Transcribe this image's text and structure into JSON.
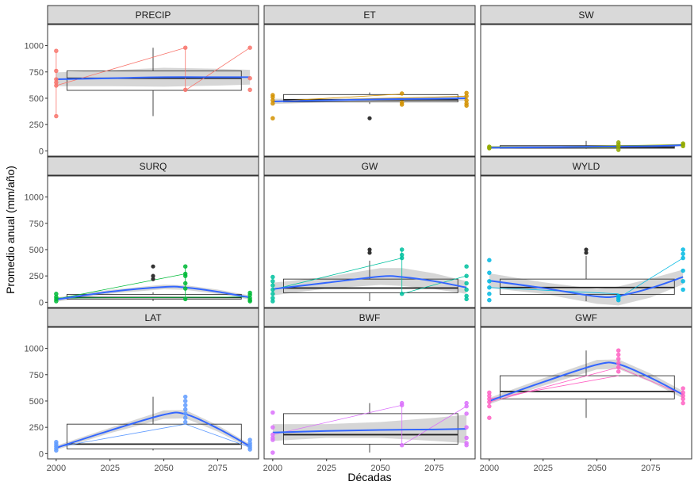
{
  "chart_data": {
    "type": "faceted-boxplot-scatter",
    "xlabel": "Décadas",
    "ylabel": "Promedio anual (mm/año)",
    "x_ticks": [
      2000,
      2025,
      2050,
      2075
    ],
    "y_ticks": [
      0,
      250,
      500,
      750,
      1000
    ],
    "xlim": [
      1996,
      2094
    ],
    "ylim": [
      -50,
      1200
    ],
    "colors": {
      "PRECIP": "#F8766D",
      "ET": "#D39200",
      "SW": "#93AA00",
      "SURQ": "#00BA38",
      "GW": "#00C19F",
      "WYLD": "#00B9E3",
      "LAT": "#619CFF",
      "BWF": "#DB72FB",
      "GWF": "#FF61C3",
      "smooth": "#3366FF",
      "ribbon": "#C8C8C8"
    },
    "panels": [
      {
        "label": "PRECIP",
        "box": {
          "x0": 2005,
          "x1": 2086,
          "q1": 575,
          "med": 690,
          "q3": 760,
          "wlo": 330,
          "whi": 980,
          "wx": 2045
        },
        "points": [
          {
            "x": 2000,
            "values": [
              950,
              760,
              680,
              650,
              620,
              330
            ]
          },
          {
            "x": 2060,
            "values": [
              980,
              580
            ]
          },
          {
            "x": 2090,
            "values": [
              980,
              690,
              580
            ]
          }
        ],
        "lines": [
          [
            [
              2000,
              620
            ],
            [
              2060,
              980
            ]
          ],
          [
            [
              2060,
              980
            ],
            [
              2060,
              575
            ]
          ],
          [
            [
              2060,
              575
            ],
            [
              2090,
              980
            ]
          ],
          [
            [
              2000,
              940
            ],
            [
              2000,
              330
            ]
          ]
        ],
        "smooth": [
          [
            2000,
            680
          ],
          [
            2025,
            690
          ],
          [
            2050,
            700
          ],
          [
            2075,
            700
          ],
          [
            2090,
            700
          ]
        ],
        "se": [
          65,
          75,
          90,
          80,
          70
        ],
        "outliers": []
      },
      {
        "label": "ET",
        "box": {
          "x0": 2005,
          "x1": 2086,
          "q1": 465,
          "med": 485,
          "q3": 535,
          "wlo": 445,
          "whi": 555,
          "wx": 2045
        },
        "points": [
          {
            "x": 2000,
            "values": [
              530,
              510,
              480,
              450,
              310
            ]
          },
          {
            "x": 2060,
            "values": [
              545,
              460,
              440
            ]
          },
          {
            "x": 2090,
            "values": [
              550,
              520,
              480,
              450,
              430
            ]
          }
        ],
        "lines": [
          [
            [
              2000,
              470
            ],
            [
              2090,
              520
            ]
          ],
          [
            [
              2000,
              470
            ],
            [
              2060,
              540
            ]
          ]
        ],
        "smooth": [
          [
            2000,
            470
          ],
          [
            2025,
            480
          ],
          [
            2050,
            490
          ],
          [
            2075,
            495
          ],
          [
            2090,
            500
          ]
        ],
        "se": [
          25,
          18,
          15,
          18,
          25
        ],
        "outliers": [
          {
            "x": 2045,
            "y": 310
          }
        ]
      },
      {
        "label": "SW",
        "box": {
          "x0": 2005,
          "x1": 2086,
          "q1": 25,
          "med": 35,
          "q3": 50,
          "wlo": 20,
          "whi": 95,
          "wx": 2045
        },
        "points": [
          {
            "x": 2000,
            "values": [
              40,
              30,
              25
            ]
          },
          {
            "x": 2060,
            "values": [
              80,
              60,
              40,
              10
            ]
          },
          {
            "x": 2090,
            "values": [
              70,
              60,
              45
            ]
          }
        ],
        "lines": [
          [
            [
              2000,
              30
            ],
            [
              2090,
              60
            ]
          ],
          [
            [
              2000,
              40
            ],
            [
              2060,
              30
            ]
          ]
        ],
        "smooth": [
          [
            2000,
            30
          ],
          [
            2025,
            35
          ],
          [
            2050,
            40
          ],
          [
            2075,
            45
          ],
          [
            2090,
            55
          ]
        ],
        "se": [
          12,
          8,
          8,
          10,
          12
        ],
        "outliers": []
      },
      {
        "label": "SURQ",
        "box": {
          "x0": 2005,
          "x1": 2086,
          "q1": 30,
          "med": 45,
          "q3": 75,
          "wlo": 10,
          "whi": 95,
          "wx": 2045
        },
        "points": [
          {
            "x": 2000,
            "values": [
              80,
              50,
              30,
              10
            ]
          },
          {
            "x": 2060,
            "values": [
              340,
              270,
              250,
              180,
              130,
              30
            ]
          },
          {
            "x": 2090,
            "values": [
              90,
              70,
              40,
              20,
              10
            ]
          }
        ],
        "lines": [
          [
            [
              2000,
              30
            ],
            [
              2060,
              270
            ]
          ],
          [
            [
              2060,
              340
            ],
            [
              2060,
              30
            ]
          ],
          [
            [
              2000,
              40
            ],
            [
              2090,
              50
            ]
          ]
        ],
        "smooth": [
          [
            2000,
            25
          ],
          [
            2025,
            100
          ],
          [
            2050,
            145
          ],
          [
            2060,
            140
          ],
          [
            2075,
            100
          ],
          [
            2090,
            45
          ]
        ],
        "se": [
          20,
          18,
          22,
          22,
          20,
          20
        ],
        "outliers": [
          {
            "x": 2045,
            "y": 340
          },
          {
            "x": 2045,
            "y": 250
          },
          {
            "x": 2045,
            "y": 220
          }
        ]
      },
      {
        "label": "GW",
        "box": {
          "x0": 2005,
          "x1": 2086,
          "q1": 90,
          "med": 135,
          "q3": 220,
          "wlo": 10,
          "whi": 395,
          "wx": 2045
        },
        "points": [
          {
            "x": 2000,
            "values": [
              240,
              200,
              160,
              120,
              80,
              40,
              10
            ]
          },
          {
            "x": 2060,
            "values": [
              500,
              450,
              420,
              80
            ]
          },
          {
            "x": 2090,
            "values": [
              340,
              250,
              180,
              120,
              60,
              30
            ]
          }
        ],
        "lines": [
          [
            [
              2000,
              120
            ],
            [
              2060,
              420
            ]
          ],
          [
            [
              2060,
              500
            ],
            [
              2060,
              80
            ]
          ],
          [
            [
              2060,
              80
            ],
            [
              2090,
              250
            ]
          ]
        ],
        "smooth": [
          [
            2000,
            125
          ],
          [
            2025,
            185
          ],
          [
            2050,
            245
          ],
          [
            2060,
            240
          ],
          [
            2075,
            200
          ],
          [
            2090,
            140
          ]
        ],
        "se": [
          60,
          55,
          80,
          85,
          75,
          60
        ],
        "outliers": [
          {
            "x": 2045,
            "y": 500
          },
          {
            "x": 2045,
            "y": 470
          }
        ]
      },
      {
        "label": "WYLD",
        "box": {
          "x0": 2005,
          "x1": 2086,
          "q1": 75,
          "med": 140,
          "q3": 220,
          "wlo": 10,
          "whi": 440,
          "wx": 2045
        },
        "points": [
          {
            "x": 2000,
            "values": [
              400,
              280,
              200,
              140,
              80,
              20
            ]
          },
          {
            "x": 2060,
            "values": [
              60,
              40,
              20
            ]
          },
          {
            "x": 2090,
            "values": [
              500,
              460,
              420,
              300,
              200,
              120
            ]
          }
        ],
        "lines": [
          [
            [
              2000,
              140
            ],
            [
              2060,
              80
            ]
          ],
          [
            [
              2060,
              40
            ],
            [
              2090,
              420
            ]
          ]
        ],
        "smooth": [
          [
            2000,
            205
          ],
          [
            2025,
            135
          ],
          [
            2050,
            55
          ],
          [
            2060,
            60
          ],
          [
            2075,
            135
          ],
          [
            2090,
            240
          ]
        ],
        "se": [
          70,
          55,
          70,
          90,
          90,
          70
        ],
        "outliers": [
          {
            "x": 2045,
            "y": 500
          },
          {
            "x": 2045,
            "y": 470
          }
        ]
      },
      {
        "label": "LAT",
        "box": {
          "x0": 2005,
          "x1": 2086,
          "q1": 45,
          "med": 90,
          "q3": 280,
          "wlo": 30,
          "whi": 540,
          "wx": 2045
        },
        "points": [
          {
            "x": 2000,
            "values": [
              110,
              90,
              70,
              50,
              30
            ]
          },
          {
            "x": 2060,
            "values": [
              540,
              500,
              460,
              420,
              380,
              340,
              300
            ]
          },
          {
            "x": 2090,
            "values": [
              130,
              100,
              80,
              60,
              40
            ]
          }
        ],
        "lines": [
          [
            [
              2000,
              60
            ],
            [
              2060,
              280
            ]
          ],
          [
            [
              2060,
              280
            ],
            [
              2090,
              60
            ]
          ]
        ],
        "smooth": [
          [
            2000,
            55
          ],
          [
            2025,
            220
          ],
          [
            2050,
            370
          ],
          [
            2060,
            375
          ],
          [
            2075,
            240
          ],
          [
            2090,
            70
          ]
        ],
        "se": [
          20,
          25,
          40,
          40,
          30,
          20
        ],
        "outliers": []
      },
      {
        "label": "BWF",
        "box": {
          "x0": 2005,
          "x1": 2086,
          "q1": 90,
          "med": 180,
          "q3": 380,
          "wlo": 10,
          "whi": 480,
          "wx": 2045
        },
        "points": [
          {
            "x": 2000,
            "values": [
              390,
              250,
              180,
              150,
              130,
              10
            ]
          },
          {
            "x": 2060,
            "values": [
              480,
              460,
              80
            ]
          },
          {
            "x": 2090,
            "values": [
              480,
              450,
              380,
              250,
              150,
              100,
              80
            ]
          }
        ],
        "lines": [
          [
            [
              2000,
              180
            ],
            [
              2060,
              460
            ]
          ],
          [
            [
              2060,
              480
            ],
            [
              2060,
              80
            ]
          ],
          [
            [
              2060,
              80
            ],
            [
              2090,
              450
            ]
          ]
        ],
        "smooth": [
          [
            2000,
            200
          ],
          [
            2025,
            215
          ],
          [
            2050,
            225
          ],
          [
            2075,
            230
          ],
          [
            2090,
            235
          ]
        ],
        "se": [
          80,
          65,
          75,
          110,
          135
        ],
        "outliers": []
      },
      {
        "label": "GWF",
        "box": {
          "x0": 2005,
          "x1": 2086,
          "q1": 520,
          "med": 590,
          "q3": 740,
          "wlo": 340,
          "whi": 980,
          "wx": 2045
        },
        "points": [
          {
            "x": 2000,
            "values": [
              580,
              550,
              520,
              490,
              450,
              340
            ]
          },
          {
            "x": 2060,
            "values": [
              980,
              940,
              900,
              860,
              820,
              780
            ]
          },
          {
            "x": 2090,
            "values": [
              620,
              580,
              550,
              520,
              480
            ]
          }
        ],
        "lines": [
          [
            [
              2000,
              490
            ],
            [
              2060,
              820
            ]
          ],
          [
            [
              2060,
              820
            ],
            [
              2090,
              560
            ]
          ],
          [
            [
              2000,
              520
            ],
            [
              2060,
              740
            ]
          ]
        ],
        "smooth": [
          [
            2000,
            500
          ],
          [
            2025,
            680
          ],
          [
            2050,
            845
          ],
          [
            2060,
            850
          ],
          [
            2075,
            720
          ],
          [
            2090,
            560
          ]
        ],
        "se": [
          30,
          35,
          45,
          45,
          40,
          35
        ],
        "outliers": []
      }
    ]
  }
}
